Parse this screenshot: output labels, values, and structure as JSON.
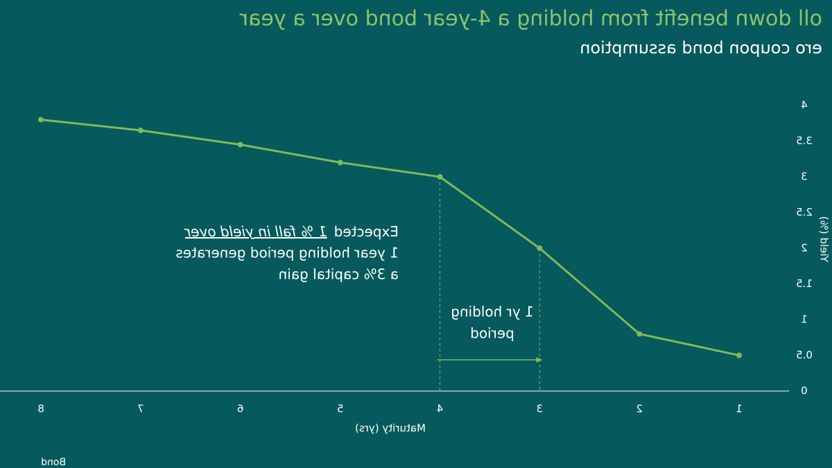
{
  "chart_data": {
    "type": "line",
    "title": "oll down benefit from holding a 4-year bond over a year",
    "subtitle": "ero coupon bond assumption",
    "x_label": "Maturity (yrs)",
    "y_label": "Yield (%)",
    "x": [
      1,
      2,
      3,
      4,
      5,
      6,
      7,
      8
    ],
    "series": [
      {
        "name": "Yield",
        "color": "#7fba5a",
        "values": [
          0.5,
          0.8,
          2.0,
          3.0,
          3.2,
          3.45,
          3.65,
          3.8
        ]
      }
    ],
    "xlim": [
      0.5,
      8.4
    ],
    "xticks": [
      1,
      2,
      3,
      4,
      5,
      6,
      7,
      8
    ],
    "ylim": [
      0,
      4
    ],
    "yticks": [
      0,
      0.5,
      1,
      1.5,
      2,
      2.5,
      3,
      3.5,
      4
    ],
    "grid": false,
    "mirrored": true,
    "annotations": [
      {
        "lead": "Expected",
        "underlined": "1 % fall in yield over",
        "lines": [
          "1 year holding period generates",
          "a 3% capital gain"
        ]
      },
      {
        "lines": [
          "1 yr holding",
          "period"
        ]
      }
    ],
    "logo_text": "Bond"
  }
}
